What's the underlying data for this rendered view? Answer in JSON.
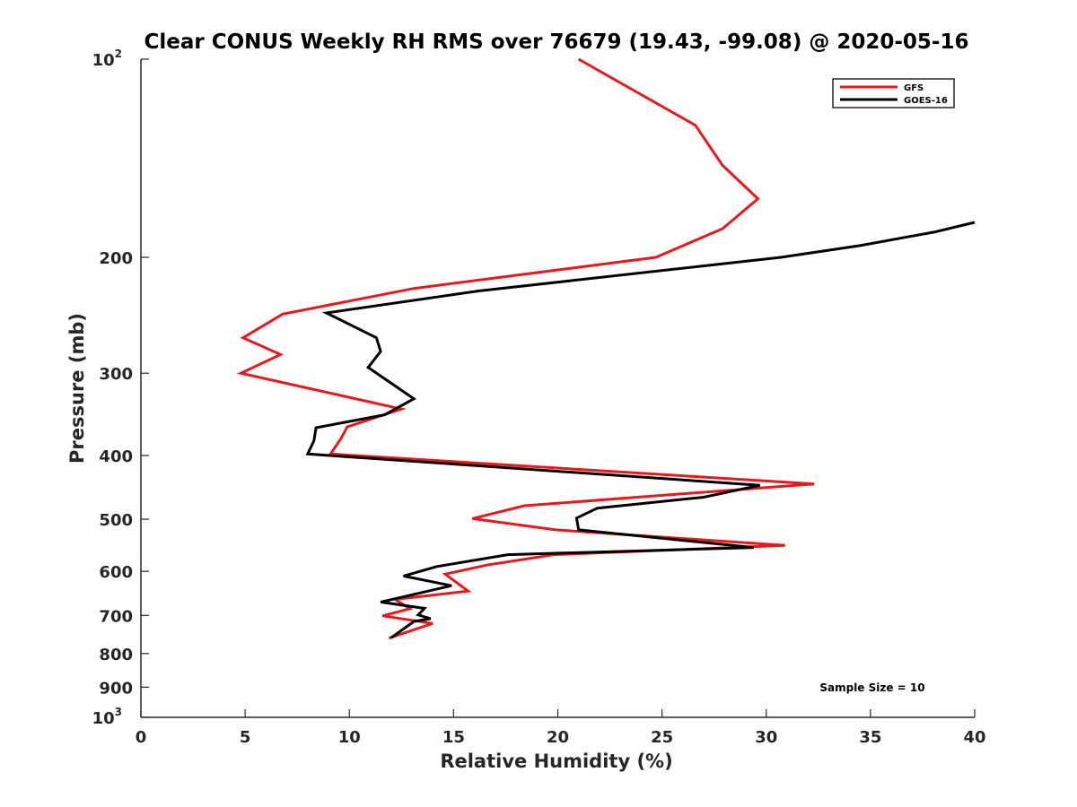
{
  "chart_data": {
    "type": "line",
    "title": "Clear CONUS Weekly RH RMS over 76679 (19.43, -99.08) @ 2020-05-16",
    "xlabel": "Relative Humidity (%)",
    "ylabel": "Pressure (mb)",
    "xlim": [
      0,
      40
    ],
    "ylim": [
      1000,
      100
    ],
    "yscale": "log",
    "grid": false,
    "legend_position": "top-right",
    "x_ticks": [
      0,
      5,
      10,
      15,
      20,
      25,
      30,
      35,
      40
    ],
    "y_ticks": [
      {
        "value": 100,
        "label": "10",
        "sup": "2"
      },
      {
        "value": 200,
        "label": "200"
      },
      {
        "value": 300,
        "label": "300"
      },
      {
        "value": 400,
        "label": "400"
      },
      {
        "value": 500,
        "label": "500"
      },
      {
        "value": 600,
        "label": "600"
      },
      {
        "value": 700,
        "label": "700"
      },
      {
        "value": 800,
        "label": "800"
      },
      {
        "value": 900,
        "label": "900"
      },
      {
        "value": 1000,
        "label": "10",
        "sup": "3"
      }
    ],
    "annotation": "Sample Size = 10",
    "series": [
      {
        "name": "GFS",
        "color": "#e41a1c",
        "points": [
          [
            21.0,
            100
          ],
          [
            26.6,
            126
          ],
          [
            27.9,
            145
          ],
          [
            29.6,
            163
          ],
          [
            27.9,
            181
          ],
          [
            24.7,
            200
          ],
          [
            13.1,
            223
          ],
          [
            6.8,
            244
          ],
          [
            4.9,
            265
          ],
          [
            6.7,
            281
          ],
          [
            4.8,
            300
          ],
          [
            12.5,
            340
          ],
          [
            9.9,
            362
          ],
          [
            9.6,
            377
          ],
          [
            9.1,
            398
          ],
          [
            32.3,
            442
          ],
          [
            18.4,
            477
          ],
          [
            15.9,
            499
          ],
          [
            19.9,
            519
          ],
          [
            30.9,
            548
          ],
          [
            19.8,
            566
          ],
          [
            16.6,
            587
          ],
          [
            14.6,
            606
          ],
          [
            15.7,
            643
          ],
          [
            12.2,
            662
          ],
          [
            12.9,
            684
          ],
          [
            11.6,
            701
          ],
          [
            14.0,
            720
          ],
          [
            11.9,
            758
          ]
        ]
      },
      {
        "name": "GOES-16",
        "color": "#000000",
        "points": [
          [
            40.0,
            177
          ],
          [
            38.1,
            183
          ],
          [
            34.5,
            192
          ],
          [
            30.7,
            200
          ],
          [
            16.2,
            225
          ],
          [
            8.9,
            243
          ],
          [
            11.3,
            265
          ],
          [
            11.5,
            278
          ],
          [
            10.9,
            294
          ],
          [
            13.1,
            328
          ],
          [
            11.7,
            347
          ],
          [
            8.4,
            363
          ],
          [
            8.3,
            380
          ],
          [
            8.0,
            398
          ],
          [
            29.7,
            444
          ],
          [
            27.0,
            463
          ],
          [
            21.9,
            481
          ],
          [
            20.9,
            498
          ],
          [
            21.0,
            519
          ],
          [
            29.4,
            552
          ],
          [
            17.6,
            566
          ],
          [
            14.2,
            590
          ],
          [
            12.6,
            610
          ],
          [
            14.9,
            631
          ],
          [
            11.5,
            668
          ],
          [
            13.6,
            683
          ],
          [
            13.3,
            699
          ],
          [
            13.9,
            708
          ],
          [
            13.1,
            715
          ],
          [
            12.0,
            757
          ]
        ]
      }
    ]
  }
}
